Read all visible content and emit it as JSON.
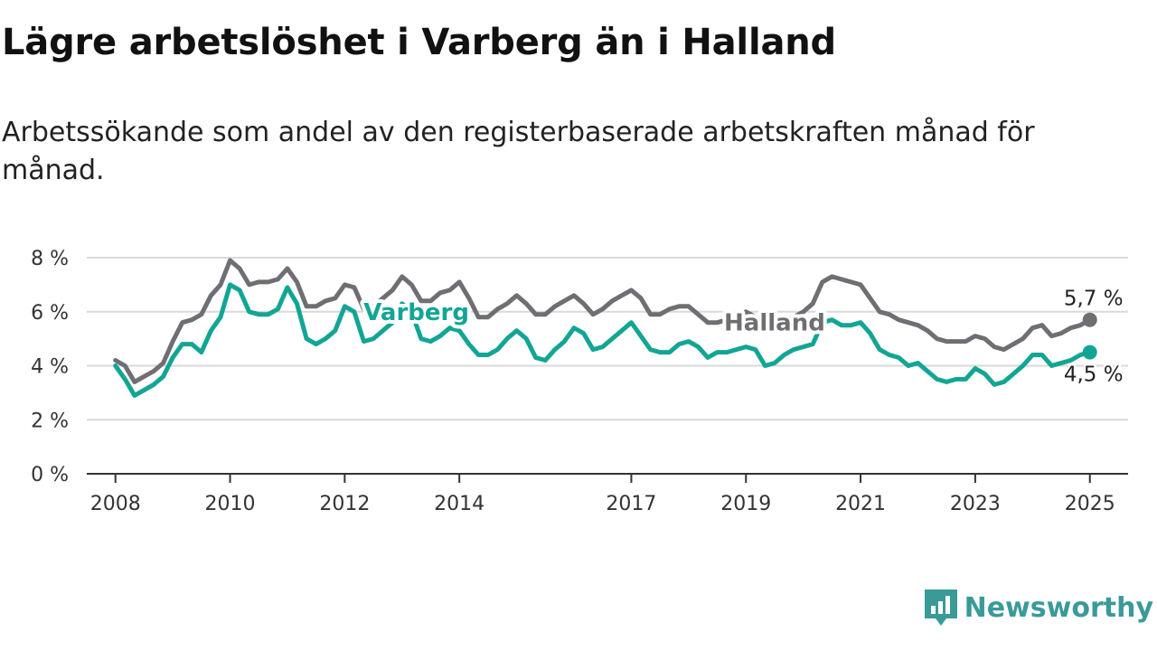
{
  "page": {
    "title": "Lägre arbetslöshet i Varberg än i Halland",
    "subtitle": "Arbetssökande som andel av den registerbaserade arbetskraften månad för månad.",
    "brand": "Newsworthy"
  },
  "colors": {
    "halland": "#6e6e73",
    "varberg": "#12a594",
    "brand": "#3a9a98",
    "grid": "#d9d9d9"
  },
  "chart_data": {
    "type": "line",
    "title": "Lägre arbetslöshet i Varberg än i Halland",
    "subtitle": "Arbetssökande som andel av den registerbaserade arbetskraften månad för månad.",
    "xlabel": "",
    "ylabel": "",
    "x_range": [
      "2007-07",
      "2025-09"
    ],
    "ylim": [
      0,
      8
    ],
    "y_ticks": [
      0,
      2,
      4,
      6,
      8
    ],
    "y_tick_labels": [
      "0 %",
      "2 %",
      "4 %",
      "6 %",
      "8 %"
    ],
    "x_ticks": [
      {
        "date": "2008-01",
        "label": "2008"
      },
      {
        "date": "2010-01",
        "label": "2010"
      },
      {
        "date": "2012-01",
        "label": "2012"
      },
      {
        "date": "2014-01",
        "label": "2014"
      },
      {
        "date": "2017-01",
        "label": "2017"
      },
      {
        "date": "2019-01",
        "label": "2019"
      },
      {
        "date": "2021-01",
        "label": "2021"
      },
      {
        "date": "2023-01",
        "label": "2023"
      },
      {
        "date": "2025-01",
        "label": "2025"
      }
    ],
    "grid": true,
    "legend": "none",
    "series": [
      {
        "name": "Halland",
        "label_at": "2019-07",
        "end_label": "5,7 %",
        "points": [
          [
            "2008-01",
            4.2
          ],
          [
            "2008-03",
            4.0
          ],
          [
            "2008-05",
            3.4
          ],
          [
            "2008-07",
            3.6
          ],
          [
            "2008-09",
            3.8
          ],
          [
            "2008-11",
            4.1
          ],
          [
            "2009-01",
            4.9
          ],
          [
            "2009-03",
            5.6
          ],
          [
            "2009-05",
            5.7
          ],
          [
            "2009-07",
            5.9
          ],
          [
            "2009-09",
            6.6
          ],
          [
            "2009-11",
            7.0
          ],
          [
            "2010-01",
            7.9
          ],
          [
            "2010-03",
            7.6
          ],
          [
            "2010-05",
            7.0
          ],
          [
            "2010-07",
            7.1
          ],
          [
            "2010-09",
            7.1
          ],
          [
            "2010-11",
            7.2
          ],
          [
            "2011-01",
            7.6
          ],
          [
            "2011-03",
            7.1
          ],
          [
            "2011-05",
            6.2
          ],
          [
            "2011-07",
            6.2
          ],
          [
            "2011-09",
            6.4
          ],
          [
            "2011-11",
            6.5
          ],
          [
            "2012-01",
            7.0
          ],
          [
            "2012-03",
            6.9
          ],
          [
            "2012-05",
            6.1
          ],
          [
            "2012-07",
            6.2
          ],
          [
            "2012-09",
            6.5
          ],
          [
            "2012-11",
            6.8
          ],
          [
            "2013-01",
            7.3
          ],
          [
            "2013-03",
            7.0
          ],
          [
            "2013-05",
            6.4
          ],
          [
            "2013-07",
            6.4
          ],
          [
            "2013-09",
            6.7
          ],
          [
            "2013-11",
            6.8
          ],
          [
            "2014-01",
            7.1
          ],
          [
            "2014-03",
            6.5
          ],
          [
            "2014-05",
            5.8
          ],
          [
            "2014-07",
            5.8
          ],
          [
            "2014-09",
            6.1
          ],
          [
            "2014-11",
            6.3
          ],
          [
            "2015-01",
            6.6
          ],
          [
            "2015-03",
            6.3
          ],
          [
            "2015-05",
            5.9
          ],
          [
            "2015-07",
            5.9
          ],
          [
            "2015-09",
            6.2
          ],
          [
            "2015-11",
            6.4
          ],
          [
            "2016-01",
            6.6
          ],
          [
            "2016-03",
            6.3
          ],
          [
            "2016-05",
            5.9
          ],
          [
            "2016-07",
            6.1
          ],
          [
            "2016-09",
            6.4
          ],
          [
            "2016-11",
            6.6
          ],
          [
            "2017-01",
            6.8
          ],
          [
            "2017-03",
            6.5
          ],
          [
            "2017-05",
            5.9
          ],
          [
            "2017-07",
            5.9
          ],
          [
            "2017-09",
            6.1
          ],
          [
            "2017-11",
            6.2
          ],
          [
            "2018-01",
            6.2
          ],
          [
            "2018-03",
            5.9
          ],
          [
            "2018-05",
            5.6
          ],
          [
            "2018-07",
            5.6
          ],
          [
            "2018-09",
            5.7
          ],
          [
            "2018-11",
            5.8
          ],
          [
            "2019-01",
            6.0
          ],
          [
            "2019-03",
            5.8
          ],
          [
            "2019-05",
            5.6
          ],
          [
            "2019-07",
            5.6
          ],
          [
            "2019-09",
            5.7
          ],
          [
            "2019-11",
            5.8
          ],
          [
            "2020-01",
            6.0
          ],
          [
            "2020-03",
            6.3
          ],
          [
            "2020-05",
            7.1
          ],
          [
            "2020-07",
            7.3
          ],
          [
            "2020-09",
            7.2
          ],
          [
            "2020-11",
            7.1
          ],
          [
            "2021-01",
            7.0
          ],
          [
            "2021-03",
            6.5
          ],
          [
            "2021-05",
            6.0
          ],
          [
            "2021-07",
            5.9
          ],
          [
            "2021-09",
            5.7
          ],
          [
            "2021-11",
            5.6
          ],
          [
            "2022-01",
            5.5
          ],
          [
            "2022-03",
            5.3
          ],
          [
            "2022-05",
            5.0
          ],
          [
            "2022-07",
            4.9
          ],
          [
            "2022-09",
            4.9
          ],
          [
            "2022-11",
            4.9
          ],
          [
            "2023-01",
            5.1
          ],
          [
            "2023-03",
            5.0
          ],
          [
            "2023-05",
            4.7
          ],
          [
            "2023-07",
            4.6
          ],
          [
            "2023-09",
            4.8
          ],
          [
            "2023-11",
            5.0
          ],
          [
            "2024-01",
            5.4
          ],
          [
            "2024-03",
            5.5
          ],
          [
            "2024-05",
            5.1
          ],
          [
            "2024-07",
            5.2
          ],
          [
            "2024-09",
            5.4
          ],
          [
            "2024-11",
            5.5
          ],
          [
            "2025-01",
            5.7
          ]
        ]
      },
      {
        "name": "Varberg",
        "label_at": "2013-04",
        "end_label": "4,5 %",
        "points": [
          [
            "2008-01",
            4.0
          ],
          [
            "2008-03",
            3.5
          ],
          [
            "2008-05",
            2.9
          ],
          [
            "2008-07",
            3.1
          ],
          [
            "2008-09",
            3.3
          ],
          [
            "2008-11",
            3.6
          ],
          [
            "2009-01",
            4.3
          ],
          [
            "2009-03",
            4.8
          ],
          [
            "2009-05",
            4.8
          ],
          [
            "2009-07",
            4.5
          ],
          [
            "2009-09",
            5.3
          ],
          [
            "2009-11",
            5.8
          ],
          [
            "2010-01",
            7.0
          ],
          [
            "2010-03",
            6.8
          ],
          [
            "2010-05",
            6.0
          ],
          [
            "2010-07",
            5.9
          ],
          [
            "2010-09",
            5.9
          ],
          [
            "2010-11",
            6.1
          ],
          [
            "2011-01",
            6.9
          ],
          [
            "2011-03",
            6.3
          ],
          [
            "2011-05",
            5.0
          ],
          [
            "2011-07",
            4.8
          ],
          [
            "2011-09",
            5.0
          ],
          [
            "2011-11",
            5.3
          ],
          [
            "2012-01",
            6.2
          ],
          [
            "2012-03",
            6.0
          ],
          [
            "2012-05",
            4.9
          ],
          [
            "2012-07",
            5.0
          ],
          [
            "2012-09",
            5.3
          ],
          [
            "2012-11",
            5.6
          ],
          [
            "2013-01",
            6.3
          ],
          [
            "2013-03",
            6.0
          ],
          [
            "2013-05",
            5.0
          ],
          [
            "2013-07",
            4.9
          ],
          [
            "2013-09",
            5.1
          ],
          [
            "2013-11",
            5.4
          ],
          [
            "2014-01",
            5.3
          ],
          [
            "2014-03",
            4.8
          ],
          [
            "2014-05",
            4.4
          ],
          [
            "2014-07",
            4.4
          ],
          [
            "2014-09",
            4.6
          ],
          [
            "2014-11",
            5.0
          ],
          [
            "2015-01",
            5.3
          ],
          [
            "2015-03",
            5.0
          ],
          [
            "2015-05",
            4.3
          ],
          [
            "2015-07",
            4.2
          ],
          [
            "2015-09",
            4.6
          ],
          [
            "2015-11",
            4.9
          ],
          [
            "2016-01",
            5.4
          ],
          [
            "2016-03",
            5.2
          ],
          [
            "2016-05",
            4.6
          ],
          [
            "2016-07",
            4.7
          ],
          [
            "2016-09",
            5.0
          ],
          [
            "2016-11",
            5.3
          ],
          [
            "2017-01",
            5.6
          ],
          [
            "2017-03",
            5.1
          ],
          [
            "2017-05",
            4.6
          ],
          [
            "2017-07",
            4.5
          ],
          [
            "2017-09",
            4.5
          ],
          [
            "2017-11",
            4.8
          ],
          [
            "2018-01",
            4.9
          ],
          [
            "2018-03",
            4.7
          ],
          [
            "2018-05",
            4.3
          ],
          [
            "2018-07",
            4.5
          ],
          [
            "2018-09",
            4.5
          ],
          [
            "2018-11",
            4.6
          ],
          [
            "2019-01",
            4.7
          ],
          [
            "2019-03",
            4.6
          ],
          [
            "2019-05",
            4.0
          ],
          [
            "2019-07",
            4.1
          ],
          [
            "2019-09",
            4.4
          ],
          [
            "2019-11",
            4.6
          ],
          [
            "2020-01",
            4.7
          ],
          [
            "2020-03",
            4.8
          ],
          [
            "2020-05",
            5.6
          ],
          [
            "2020-07",
            5.7
          ],
          [
            "2020-09",
            5.5
          ],
          [
            "2020-11",
            5.5
          ],
          [
            "2021-01",
            5.6
          ],
          [
            "2021-03",
            5.2
          ],
          [
            "2021-05",
            4.6
          ],
          [
            "2021-07",
            4.4
          ],
          [
            "2021-09",
            4.3
          ],
          [
            "2021-11",
            4.0
          ],
          [
            "2022-01",
            4.1
          ],
          [
            "2022-03",
            3.8
          ],
          [
            "2022-05",
            3.5
          ],
          [
            "2022-07",
            3.4
          ],
          [
            "2022-09",
            3.5
          ],
          [
            "2022-11",
            3.5
          ],
          [
            "2023-01",
            3.9
          ],
          [
            "2023-03",
            3.7
          ],
          [
            "2023-05",
            3.3
          ],
          [
            "2023-07",
            3.4
          ],
          [
            "2023-09",
            3.7
          ],
          [
            "2023-11",
            4.0
          ],
          [
            "2024-01",
            4.4
          ],
          [
            "2024-03",
            4.4
          ],
          [
            "2024-05",
            4.0
          ],
          [
            "2024-07",
            4.1
          ],
          [
            "2024-09",
            4.2
          ],
          [
            "2024-11",
            4.4
          ],
          [
            "2025-01",
            4.5
          ]
        ]
      }
    ]
  }
}
